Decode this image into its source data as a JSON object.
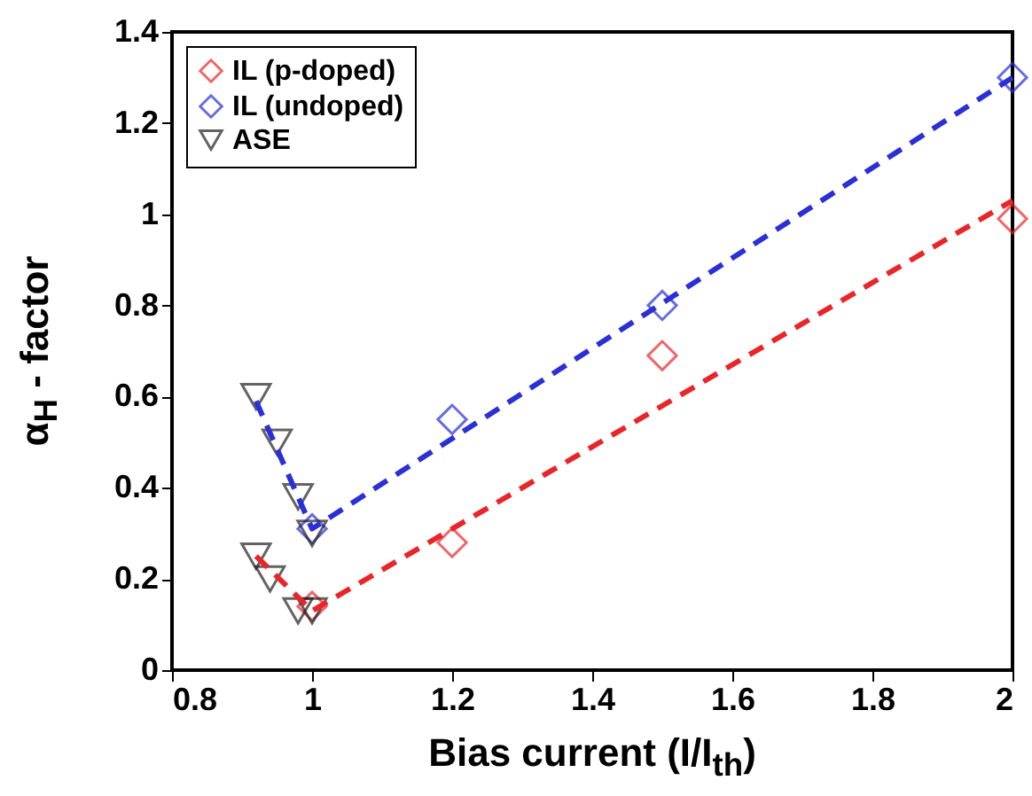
{
  "chart_data": {
    "type": "scatter",
    "xlabel": "Bias current (I/I$_{th}$)",
    "ylabel": "α$_{H}$ - factor",
    "xlim": [
      0.8,
      2
    ],
    "ylim": [
      0,
      1.4
    ],
    "xticks": [
      0.8,
      1,
      1.2,
      1.4,
      1.6,
      1.8,
      2
    ],
    "yticks": [
      0,
      0.2,
      0.4,
      0.6,
      0.8,
      1,
      1.2,
      1.4
    ],
    "legend": "top left",
    "series": [
      {
        "name": "IL (p-doped)",
        "color": "#e8262a",
        "marker": "diamond",
        "x": [
          1,
          1.2,
          1.5,
          2
        ],
        "values": [
          0.14,
          0.28,
          0.69,
          0.99
        ]
      },
      {
        "name": "IL (undoped)",
        "color": "#2b2fd6",
        "marker": "diamond",
        "x": [
          1,
          1.2,
          1.5,
          2
        ],
        "values": [
          0.31,
          0.55,
          0.8,
          1.3
        ]
      },
      {
        "name": "ASE",
        "color": "#222222",
        "marker": "triangle",
        "x": [
          0.92,
          0.95,
          0.98,
          1,
          0.92,
          0.94,
          0.98,
          1
        ],
        "values": [
          0.6,
          0.5,
          0.38,
          0.3,
          0.25,
          0.2,
          0.13,
          0.13
        ]
      },
      {
        "type": "line",
        "line_style": "dashed",
        "color": "#2b2fd6",
        "x": [
          0.92,
          1,
          2
        ],
        "values": [
          0.59,
          0.31,
          1.3
        ]
      },
      {
        "type": "line",
        "line_style": "dashed",
        "color": "#e8262a",
        "x": [
          0.92,
          1,
          2
        ],
        "values": [
          0.25,
          0.13,
          1.03
        ]
      }
    ]
  }
}
